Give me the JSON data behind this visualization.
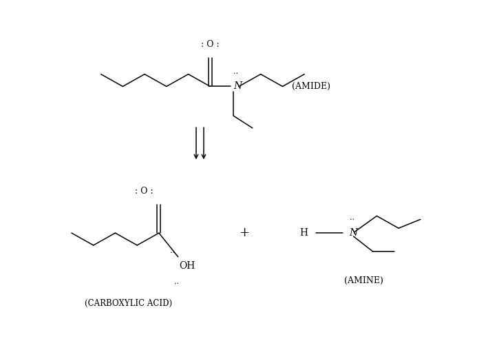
{
  "bg_color": "#ffffff",
  "line_color": "#000000",
  "figsize": [
    6.93,
    5.24
  ],
  "dpi": 100,
  "amide_label": "(AMIDE)",
  "amine_label": "(AMINE)",
  "carboxylic_label": "(CARBOXYLIC ACID)",
  "O_amide": ": O :",
  "O_carboxylic": ": O :",
  "N_amide": "N",
  "N_amine": "N",
  "OH_label": "OH",
  "plus_label": "+",
  "dots_N_amide": "..",
  "dots_N_amine": "..",
  "dots_OH_top": "..",
  "dots_OH_bot": ".."
}
